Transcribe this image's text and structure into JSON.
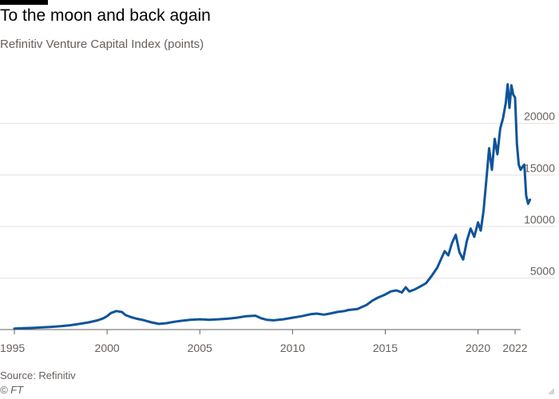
{
  "title": "To the moon and back again",
  "subtitle": "Refinitiv Venture Capital Index (points)",
  "source": "Source: Refinitiv",
  "credit": "© FT",
  "colors": {
    "line": "#0f5499",
    "grid": "#e6e2dd",
    "axis": "#66605c",
    "text": "#66605c"
  },
  "chart_data": {
    "type": "line",
    "title": "To the moon and back again",
    "subtitle": "Refinitiv Venture Capital Index (points)",
    "ylim": [
      0,
      24000
    ],
    "xlim": [
      1995,
      2022
    ],
    "y_ticks": [
      5000,
      10000,
      15000,
      20000
    ],
    "y_tick_labels": [
      "5000",
      "10000",
      "15000",
      "20000"
    ],
    "x_ticks": [
      1995,
      2000,
      2005,
      2010,
      2015,
      2020,
      2022
    ],
    "x_tick_labels": [
      "1995",
      "2000",
      "2005",
      "2010",
      "2015",
      "2020",
      "2022"
    ],
    "y_axis_side": "right",
    "grid": "horizontal",
    "legend": "none",
    "series": [
      {
        "color": "#0f5499",
        "x": [
          1995.0,
          1995.5,
          1996.0,
          1996.5,
          1997.0,
          1997.5,
          1998.0,
          1998.5,
          1999.0,
          1999.5,
          1999.8,
          2000.0,
          2000.2,
          2000.5,
          2000.8,
          2001.0,
          2001.3,
          2001.6,
          2002.0,
          2002.4,
          2002.8,
          2003.2,
          2003.6,
          2004.0,
          2004.5,
          2005.0,
          2005.5,
          2006.0,
          2006.5,
          2007.0,
          2007.5,
          2008.0,
          2008.3,
          2008.6,
          2009.0,
          2009.5,
          2010.0,
          2010.5,
          2011.0,
          2011.3,
          2011.7,
          2012.0,
          2012.4,
          2012.8,
          2013.0,
          2013.5,
          2014.0,
          2014.3,
          2014.6,
          2015.0,
          2015.3,
          2015.6,
          2015.9,
          2016.1,
          2016.3,
          2016.6,
          2016.9,
          2017.2,
          2017.5,
          2017.8,
          2018.0,
          2018.2,
          2018.4,
          2018.6,
          2018.8,
          2019.0,
          2019.2,
          2019.4,
          2019.6,
          2019.8,
          2020.0,
          2020.15,
          2020.3,
          2020.45,
          2020.6,
          2020.75,
          2020.9,
          2021.05,
          2021.2,
          2021.35,
          2021.5,
          2021.6,
          2021.7,
          2021.8,
          2021.9,
          2022.0,
          2022.1,
          2022.2,
          2022.3,
          2022.4,
          2022.5,
          2022.6,
          2022.7,
          2022.8
        ],
        "values": [
          100,
          130,
          160,
          210,
          260,
          330,
          420,
          550,
          700,
          900,
          1100,
          1300,
          1600,
          1800,
          1700,
          1400,
          1200,
          1050,
          900,
          700,
          550,
          620,
          750,
          850,
          950,
          1000,
          950,
          1000,
          1050,
          1150,
          1300,
          1350,
          1100,
          950,
          900,
          1000,
          1150,
          1300,
          1500,
          1550,
          1450,
          1550,
          1700,
          1800,
          1900,
          2000,
          2400,
          2800,
          3100,
          3400,
          3700,
          3800,
          3600,
          4100,
          3700,
          3900,
          4200,
          4500,
          5200,
          6000,
          6800,
          7600,
          7200,
          8400,
          9200,
          7500,
          6800,
          8600,
          9800,
          9000,
          10400,
          9600,
          11500,
          14500,
          17600,
          15500,
          18500,
          17000,
          19500,
          20500,
          22000,
          23800,
          21500,
          23700,
          22800,
          22500,
          18000,
          16000,
          15500,
          15800,
          16000,
          13000,
          12200,
          12600
        ]
      }
    ]
  }
}
